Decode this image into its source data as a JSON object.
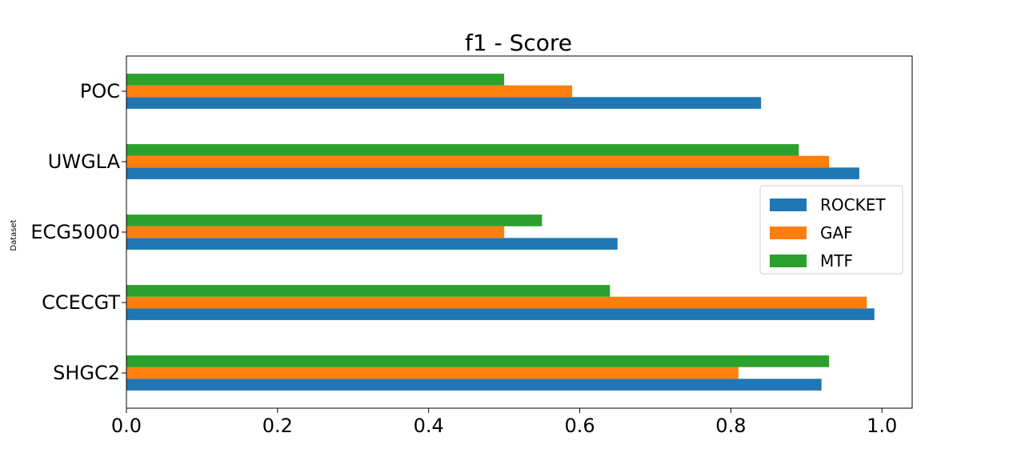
{
  "chart_data": {
    "type": "bar",
    "orientation": "horizontal",
    "title": "f1 - Score",
    "xlabel": "",
    "ylabel": "Dataset",
    "categories": [
      "SHGC2",
      "CCECGT",
      "ECG5000",
      "UWGLA",
      "POC"
    ],
    "series": [
      {
        "name": "ROCKET",
        "color": "#1f77b4",
        "values": [
          0.92,
          0.99,
          0.65,
          0.97,
          0.84
        ]
      },
      {
        "name": "GAF",
        "color": "#ff7f0e",
        "values": [
          0.81,
          0.98,
          0.5,
          0.93,
          0.59
        ]
      },
      {
        "name": "MTF",
        "color": "#2ca02c",
        "values": [
          0.93,
          0.64,
          0.55,
          0.89,
          0.5
        ]
      }
    ],
    "xlim": [
      0.0,
      1.04
    ],
    "xticks": [
      "0.0",
      "0.2",
      "0.4",
      "0.6",
      "0.8",
      "1.0"
    ],
    "xtick_values": [
      0.0,
      0.2,
      0.4,
      0.6,
      0.8,
      1.0
    ],
    "grid": false,
    "legend_position": "center-right"
  }
}
